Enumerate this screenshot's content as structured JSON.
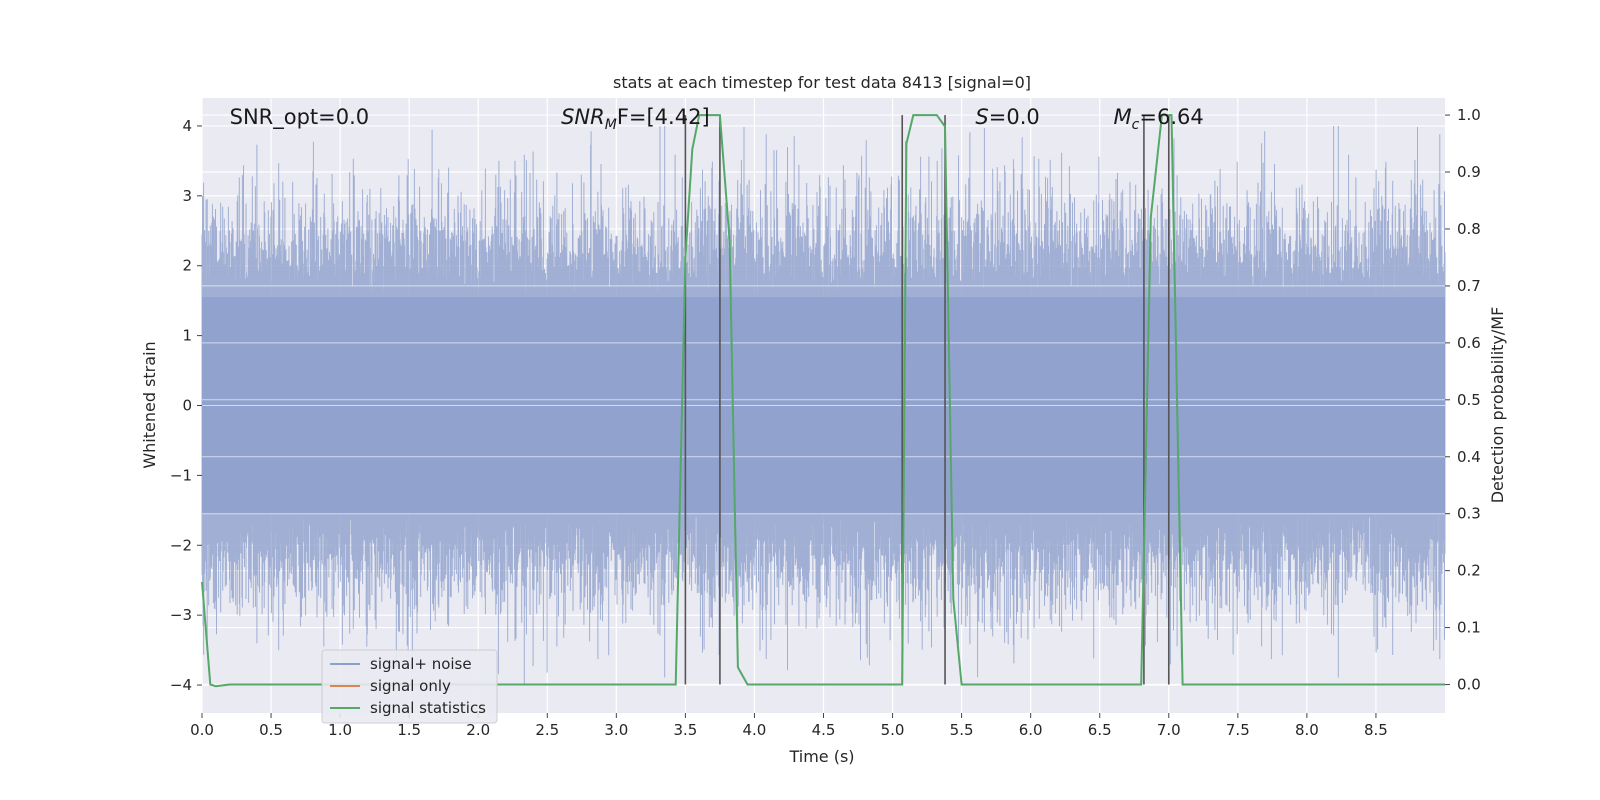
{
  "chart_data": {
    "type": "line",
    "title": "stats at each timestep for test data 8413 [signal=0]",
    "xlabel": "Time (s)",
    "ylabel_left": "Whitened strain",
    "ylabel_right": "Detection probability/MF",
    "xlim": [
      0.0,
      9.0
    ],
    "ylim_left": [
      -4.4,
      4.4
    ],
    "ylim_right": [
      -0.05,
      1.03
    ],
    "x_ticks": [
      "0.0",
      "0.5",
      "1.0",
      "1.5",
      "2.0",
      "2.5",
      "3.0",
      "3.5",
      "4.0",
      "4.5",
      "5.0",
      "5.5",
      "6.0",
      "6.5",
      "7.0",
      "7.5",
      "8.0",
      "8.5"
    ],
    "x_tick_values": [
      0.0,
      0.5,
      1.0,
      1.5,
      2.0,
      2.5,
      3.0,
      3.5,
      4.0,
      4.5,
      5.0,
      5.5,
      6.0,
      6.5,
      7.0,
      7.5,
      8.0,
      8.5
    ],
    "y_left_ticks": [
      "4",
      "3",
      "2",
      "1",
      "0",
      "−1",
      "−2",
      "−3",
      "−4"
    ],
    "y_left_tick_values": [
      4,
      3,
      2,
      1,
      0,
      -1,
      -2,
      -3,
      -4
    ],
    "y_right_ticks": [
      "1.0",
      "0.9",
      "0.8",
      "0.7",
      "0.6",
      "0.5",
      "0.4",
      "0.3",
      "0.2",
      "0.1",
      "0.0"
    ],
    "y_right_tick_values": [
      1.0,
      0.9,
      0.8,
      0.7,
      0.6,
      0.5,
      0.4,
      0.3,
      0.2,
      0.1,
      0.0
    ],
    "grid": true,
    "legend_placement": "lower-left",
    "series": [
      {
        "name": "signal+ noise",
        "color": "#8da0cb",
        "axis": "left",
        "style": "noise"
      },
      {
        "name": "signal only",
        "color": "#dd8452",
        "axis": "left",
        "values": []
      },
      {
        "name": "signal statistics",
        "color": "#55a868",
        "axis": "right",
        "x": [
          0.0,
          0.06,
          0.1,
          0.2,
          0.5,
          1.0,
          2.0,
          3.0,
          3.43,
          3.5,
          3.55,
          3.6,
          3.65,
          3.75,
          3.82,
          3.88,
          3.95,
          4.0,
          4.5,
          5.07,
          5.1,
          5.15,
          5.2,
          5.25,
          5.32,
          5.38,
          5.44,
          5.5,
          5.6,
          6.0,
          6.6,
          6.8,
          6.87,
          6.95,
          7.0,
          7.02,
          7.1,
          7.2,
          8.0,
          9.0
        ],
        "y": [
          0.18,
          0.0,
          -0.003,
          0.0,
          0.0,
          0.0,
          0.0,
          0.0,
          0.0,
          0.75,
          0.94,
          1.0,
          1.0,
          1.0,
          0.78,
          0.03,
          0.0,
          0.0,
          0.0,
          0.0,
          0.95,
          1.0,
          1.0,
          1.0,
          1.0,
          0.98,
          0.15,
          0.0,
          0.0,
          0.0,
          0.0,
          0.0,
          0.82,
          1.0,
          1.0,
          1.0,
          0.0,
          0.0,
          0.0,
          0.0
        ]
      }
    ],
    "vertical_markers": [
      3.5,
      3.75,
      5.07,
      5.38,
      6.82,
      7.0
    ],
    "annotations": [
      {
        "text": "SNR_opt=0.0",
        "x": 0.2
      },
      {
        "text_main": "SNR",
        "text_sub": "M",
        "text_rest": "F=[4.42]",
        "x": 2.6
      },
      {
        "text_main": "S",
        "text_rest": "=0.0",
        "x": 5.6
      },
      {
        "text_main": "M",
        "text_sub": "c",
        "text_rest": "=6.64",
        "x": 6.6
      }
    ]
  }
}
